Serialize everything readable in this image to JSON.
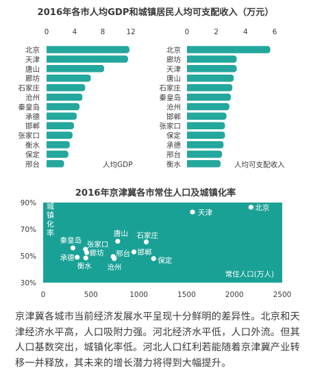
{
  "title1": "2016年各市人均GDP和城镇居民人均可支配收入（万元）",
  "title2": "2016年京津冀各市常住人口及城镇化率",
  "caption": "京津冀各城市当前经济发展水平呈现十分鲜明的差异性。北京和天津经济水平高，人口吸附力强。河北经济水平低，人口外流。但其人口基数突出，城镇化率低。河北人口红利若能随着京津冀产业转移一并释放，其未来的增长潜力将得到大幅提升。",
  "colors": {
    "bar": "#24a79c",
    "scatter_bg": "#1aa196",
    "point": "#ffffff",
    "text_on_teal": "#ffffff"
  },
  "chart_data": [
    {
      "type": "bar",
      "orientation": "horizontal",
      "categories": [
        "北京",
        "天津",
        "唐山",
        "廊坊",
        "石家庄",
        "沧州",
        "秦皇岛",
        "承德",
        "邯郸",
        "张家口",
        "衡水",
        "保定",
        "邢台"
      ],
      "series": [
        {
          "name": "人均GDP",
          "values": [
            11.8,
            11.6,
            8.2,
            6.3,
            5.5,
            5.1,
            4.7,
            4.3,
            3.9,
            3.7,
            3.3,
            3.1,
            2.5
          ]
        }
      ],
      "xlim": [
        0,
        12
      ],
      "xticks": [
        "0",
        "4",
        "8",
        "12"
      ]
    },
    {
      "type": "bar",
      "orientation": "horizontal",
      "categories": [
        "北京",
        "廊坊",
        "天津",
        "唐山",
        "石家庄",
        "秦皇岛",
        "沧州",
        "邯郸",
        "张家口",
        "保定",
        "承德",
        "邢台",
        "衡水"
      ],
      "series": [
        {
          "name": "人均可支配收入",
          "values": [
            5.7,
            3.4,
            3.4,
            3.2,
            3.1,
            3.0,
            2.9,
            2.7,
            2.6,
            2.6,
            2.5,
            2.4,
            2.3
          ]
        }
      ],
      "xlim": [
        0,
        6
      ],
      "xticks": [
        "0",
        "2",
        "4",
        "6"
      ]
    },
    {
      "type": "scatter",
      "xlabel": "常住人口(万人)",
      "ylabel": "城镇化率",
      "xlim": [
        0,
        2500
      ],
      "ylim": [
        30,
        90
      ],
      "xticks": [
        "0",
        "500",
        "1000",
        "1500",
        "2000",
        "2500"
      ],
      "yticks": [
        "30%",
        "50%",
        "70%",
        "90%"
      ],
      "points": [
        {
          "label": "北京",
          "x": 2173,
          "y": 86.5
        },
        {
          "label": "天津",
          "x": 1562,
          "y": 82.9
        },
        {
          "label": "石家庄",
          "x": 1078,
          "y": 60.5
        },
        {
          "label": "唐山",
          "x": 780,
          "y": 61.0
        },
        {
          "label": "秦皇岛",
          "x": 311,
          "y": 56.0
        },
        {
          "label": "张家口",
          "x": 443,
          "y": 55.0
        },
        {
          "label": "廊坊",
          "x": 456,
          "y": 52.5
        },
        {
          "label": "承德",
          "x": 356,
          "y": 49.0
        },
        {
          "label": "衡水",
          "x": 446,
          "y": 48.5
        },
        {
          "label": "邢台",
          "x": 732,
          "y": 49.5
        },
        {
          "label": "沧州",
          "x": 744,
          "y": 48.0
        },
        {
          "label": "邯郸",
          "x": 949,
          "y": 53.0
        },
        {
          "label": "保定",
          "x": 1155,
          "y": 48.0
        }
      ]
    }
  ]
}
